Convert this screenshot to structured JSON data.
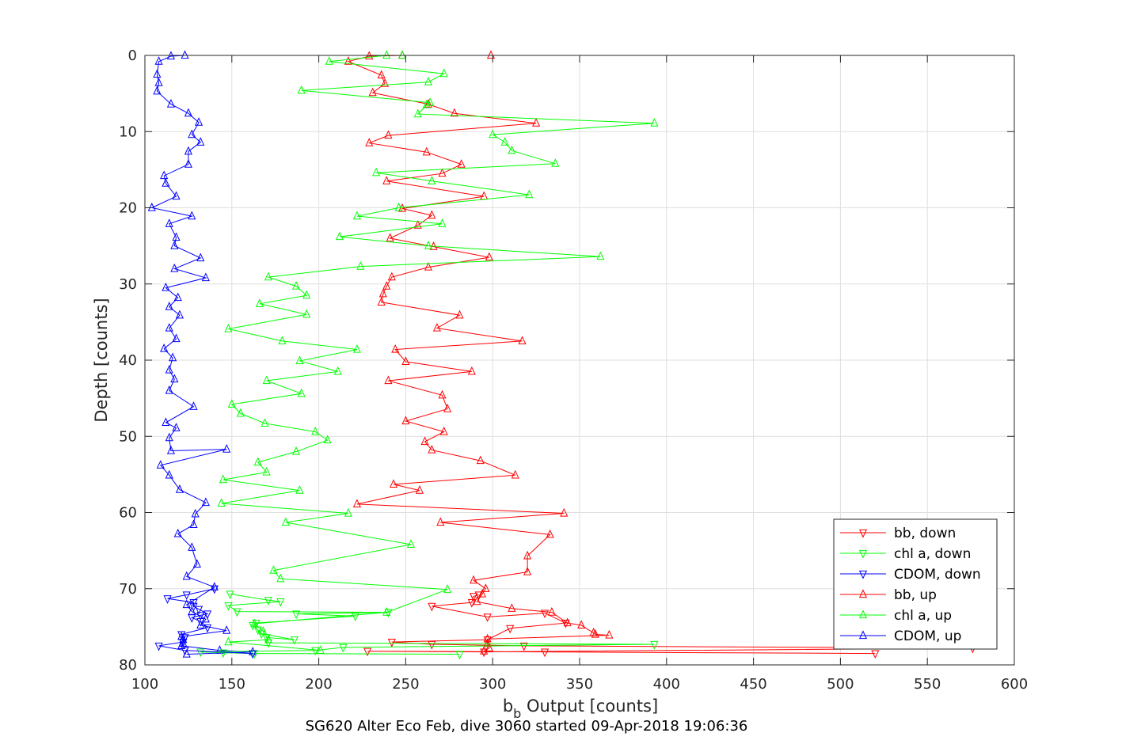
{
  "chart_data": {
    "type": "line",
    "xlabel": "b",
    "xlabel_sub": "b",
    "xlabel_rest": " Output [counts]",
    "ylabel": "Depth [counts]",
    "caption": "SG620 Alter Eco Feb, dive 3060 started 09-Apr-2018 19:06:36",
    "xlim": [
      100,
      600
    ],
    "ylim": [
      0,
      80
    ],
    "y_reversed": true,
    "xticks": [
      "100",
      "150",
      "200",
      "250",
      "300",
      "350",
      "400",
      "450",
      "500",
      "550",
      "600"
    ],
    "yticks": [
      "0",
      "10",
      "20",
      "30",
      "40",
      "50",
      "60",
      "70",
      "80"
    ],
    "grid": true,
    "legend_position": "bottom-right",
    "series": [
      {
        "name": "bb, down",
        "color": "#ff0000",
        "marker": "down",
        "points": [
          [
            520,
            78.5
          ],
          [
            330,
            78.3
          ],
          [
            228,
            78.2
          ],
          [
            295,
            78.3
          ],
          [
            576,
            77.8
          ],
          [
            318,
            77.5
          ],
          [
            265,
            77.3
          ],
          [
            242,
            77.0
          ],
          [
            297,
            76.7
          ],
          [
            310,
            75.2
          ],
          [
            342,
            74.5
          ],
          [
            330,
            73.2
          ],
          [
            297,
            73.7
          ],
          [
            265,
            72.3
          ],
          [
            288,
            71.8
          ],
          [
            289,
            71.0
          ],
          [
            292,
            70.8
          ]
        ]
      },
      {
        "name": "chl a, down",
        "color": "#00ff00",
        "marker": "down",
        "points": [
          [
            281,
            78.6
          ],
          [
            163,
            78.5
          ],
          [
            145,
            78.4
          ],
          [
            132,
            78.3
          ],
          [
            198,
            78.1
          ],
          [
            214,
            77.7
          ],
          [
            393,
            77.3
          ],
          [
            171,
            77.1
          ],
          [
            170,
            76.4
          ],
          [
            186,
            76.7
          ],
          [
            167,
            75.9
          ],
          [
            165,
            75.4
          ],
          [
            162,
            74.8
          ],
          [
            164,
            74.5
          ],
          [
            221,
            73.6
          ],
          [
            187,
            73.3
          ],
          [
            240,
            73.1
          ],
          [
            153,
            73.0
          ],
          [
            148,
            72.2
          ],
          [
            178,
            71.7
          ],
          [
            171,
            71.5
          ],
          [
            149,
            70.7
          ]
        ]
      },
      {
        "name": "CDOM, down",
        "color": "#0000ff",
        "marker": "down",
        "points": [
          [
            162,
            78.5
          ],
          [
            123,
            78.1
          ],
          [
            108,
            77.5
          ],
          [
            122,
            77.0
          ],
          [
            123,
            76.4
          ],
          [
            121,
            76.0
          ],
          [
            136,
            75.1
          ],
          [
            132,
            74.3
          ],
          [
            127,
            73.8
          ],
          [
            132,
            73.5
          ],
          [
            136,
            73.3
          ],
          [
            131,
            72.7
          ],
          [
            128,
            72.3
          ],
          [
            128,
            71.8
          ],
          [
            113,
            71.3
          ],
          [
            124,
            70.8
          ],
          [
            140,
            70.0
          ]
        ]
      },
      {
        "name": "bb, up",
        "color": "#ff0000",
        "marker": "up",
        "points": [
          [
            299,
            0
          ],
          [
            248,
            0
          ],
          [
            229,
            0.1
          ],
          [
            217,
            0.8
          ],
          [
            236,
            2.6
          ],
          [
            238,
            3.7
          ],
          [
            231,
            4.9
          ],
          [
            263,
            6.4
          ],
          [
            278,
            7.6
          ],
          [
            325,
            8.9
          ],
          [
            240,
            10.5
          ],
          [
            229,
            11.5
          ],
          [
            262,
            12.7
          ],
          [
            282,
            14.3
          ],
          [
            271,
            15.5
          ],
          [
            239,
            16.5
          ],
          [
            295,
            18.5
          ],
          [
            248,
            20.1
          ],
          [
            265,
            21.0
          ],
          [
            257,
            22.3
          ],
          [
            241,
            24.0
          ],
          [
            266,
            25.1
          ],
          [
            298,
            26.5
          ],
          [
            263,
            27.8
          ],
          [
            242,
            29.1
          ],
          [
            239,
            30.3
          ],
          [
            237,
            31.3
          ],
          [
            236,
            32.4
          ],
          [
            281,
            34.1
          ],
          [
            268,
            35.8
          ],
          [
            317,
            37.5
          ],
          [
            244,
            38.6
          ],
          [
            250,
            40.2
          ],
          [
            288,
            41.5
          ],
          [
            240,
            42.7
          ],
          [
            271,
            44.6
          ],
          [
            274,
            46.4
          ],
          [
            250,
            48.0
          ],
          [
            272,
            49.4
          ],
          [
            261,
            50.7
          ],
          [
            265,
            51.8
          ],
          [
            293,
            53.2
          ],
          [
            313,
            55.1
          ],
          [
            243,
            56.3
          ],
          [
            258,
            57.1
          ],
          [
            222,
            58.9
          ],
          [
            341,
            60.1
          ],
          [
            270,
            61.3
          ],
          [
            333,
            62.9
          ],
          [
            320,
            65.7
          ],
          [
            320,
            67.8
          ],
          [
            289,
            68.9
          ],
          [
            296,
            70.0
          ],
          [
            294,
            70.7
          ],
          [
            291,
            71.7
          ],
          [
            311,
            72.6
          ],
          [
            334,
            73.1
          ],
          [
            343,
            74.5
          ],
          [
            351,
            74.8
          ],
          [
            358,
            75.8
          ],
          [
            359,
            76.0
          ],
          [
            367,
            76.1
          ],
          [
            297,
            76.6
          ],
          [
            297,
            77.2
          ],
          [
            298,
            77.8
          ],
          [
            295,
            78.2
          ]
        ]
      },
      {
        "name": "chl a, up",
        "color": "#00ff00",
        "marker": "up",
        "points": [
          [
            248,
            0
          ],
          [
            239,
            0
          ],
          [
            206,
            0.8
          ],
          [
            272,
            2.4
          ],
          [
            263,
            3.5
          ],
          [
            190,
            4.6
          ],
          [
            264,
            6.2
          ],
          [
            262,
            6.5
          ],
          [
            257,
            7.7
          ],
          [
            393,
            8.9
          ],
          [
            300,
            10.4
          ],
          [
            307,
            11.4
          ],
          [
            311,
            12.5
          ],
          [
            336,
            14.2
          ],
          [
            233,
            15.4
          ],
          [
            265,
            16.5
          ],
          [
            321,
            18.3
          ],
          [
            246,
            20.0
          ],
          [
            222,
            21.1
          ],
          [
            271,
            22.1
          ],
          [
            212,
            23.8
          ],
          [
            263,
            25.0
          ],
          [
            362,
            26.4
          ],
          [
            224,
            27.7
          ],
          [
            171,
            29.1
          ],
          [
            187,
            30.3
          ],
          [
            193,
            31.5
          ],
          [
            166,
            32.6
          ],
          [
            193,
            34.0
          ],
          [
            148,
            35.9
          ],
          [
            179,
            37.5
          ],
          [
            222,
            38.6
          ],
          [
            189,
            40.1
          ],
          [
            211,
            41.5
          ],
          [
            170,
            42.7
          ],
          [
            190,
            44.4
          ],
          [
            150,
            45.8
          ],
          [
            155,
            47.0
          ],
          [
            169,
            48.3
          ],
          [
            198,
            49.4
          ],
          [
            205,
            50.5
          ],
          [
            187,
            52.0
          ],
          [
            165,
            53.4
          ],
          [
            170,
            54.7
          ],
          [
            145,
            55.7
          ],
          [
            189,
            57.1
          ],
          [
            144,
            58.8
          ],
          [
            217,
            60.1
          ],
          [
            181,
            61.3
          ],
          [
            253,
            64.2
          ],
          [
            174,
            67.6
          ],
          [
            178,
            68.7
          ],
          [
            274,
            70.1
          ],
          [
            239,
            73.1
          ],
          [
            163,
            74.6
          ],
          [
            168,
            75.6
          ],
          [
            171,
            76.7
          ],
          [
            148,
            77.0
          ],
          [
            201,
            78.1
          ]
        ]
      },
      {
        "name": "CDOM, up",
        "color": "#0000ff",
        "marker": "up",
        "points": [
          [
            123,
            0
          ],
          [
            115,
            0.1
          ],
          [
            108,
            0.8
          ],
          [
            107,
            2.5
          ],
          [
            108,
            3.6
          ],
          [
            107,
            4.7
          ],
          [
            115,
            6.4
          ],
          [
            125,
            7.6
          ],
          [
            131,
            8.8
          ],
          [
            127,
            10.4
          ],
          [
            132,
            11.4
          ],
          [
            125,
            12.6
          ],
          [
            125,
            14.3
          ],
          [
            111,
            15.8
          ],
          [
            112,
            16.8
          ],
          [
            118,
            18.5
          ],
          [
            104,
            20.0
          ],
          [
            127,
            21.1
          ],
          [
            114,
            22.1
          ],
          [
            118,
            23.9
          ],
          [
            117,
            25.0
          ],
          [
            132,
            26.6
          ],
          [
            117,
            28.0
          ],
          [
            135,
            29.2
          ],
          [
            112,
            30.5
          ],
          [
            119,
            31.8
          ],
          [
            114,
            33.0
          ],
          [
            120,
            34.1
          ],
          [
            114,
            35.8
          ],
          [
            118,
            37.2
          ],
          [
            111,
            38.5
          ],
          [
            116,
            39.7
          ],
          [
            114,
            41.3
          ],
          [
            117,
            42.5
          ],
          [
            114,
            44.0
          ],
          [
            128,
            46.1
          ],
          [
            112,
            48.2
          ],
          [
            118,
            48.9
          ],
          [
            114,
            50.2
          ],
          [
            115,
            51.9
          ],
          [
            147,
            51.7
          ],
          [
            109,
            53.8
          ],
          [
            114,
            55.1
          ],
          [
            120,
            57.0
          ],
          [
            135,
            58.7
          ],
          [
            129,
            60.2
          ],
          [
            128,
            61.6
          ],
          [
            119,
            62.8
          ],
          [
            127,
            64.6
          ],
          [
            130,
            66.8
          ],
          [
            124,
            68.4
          ],
          [
            140,
            69.8
          ],
          [
            124,
            72.1
          ],
          [
            127,
            73.0
          ],
          [
            135,
            74.0
          ],
          [
            132,
            74.8
          ],
          [
            147,
            75.5
          ],
          [
            121,
            76.3
          ],
          [
            122,
            76.7
          ],
          [
            122,
            77.2
          ],
          [
            121,
            77.5
          ],
          [
            143,
            78.1
          ],
          [
            162,
            78.3
          ],
          [
            124,
            78.6
          ]
        ]
      }
    ]
  }
}
